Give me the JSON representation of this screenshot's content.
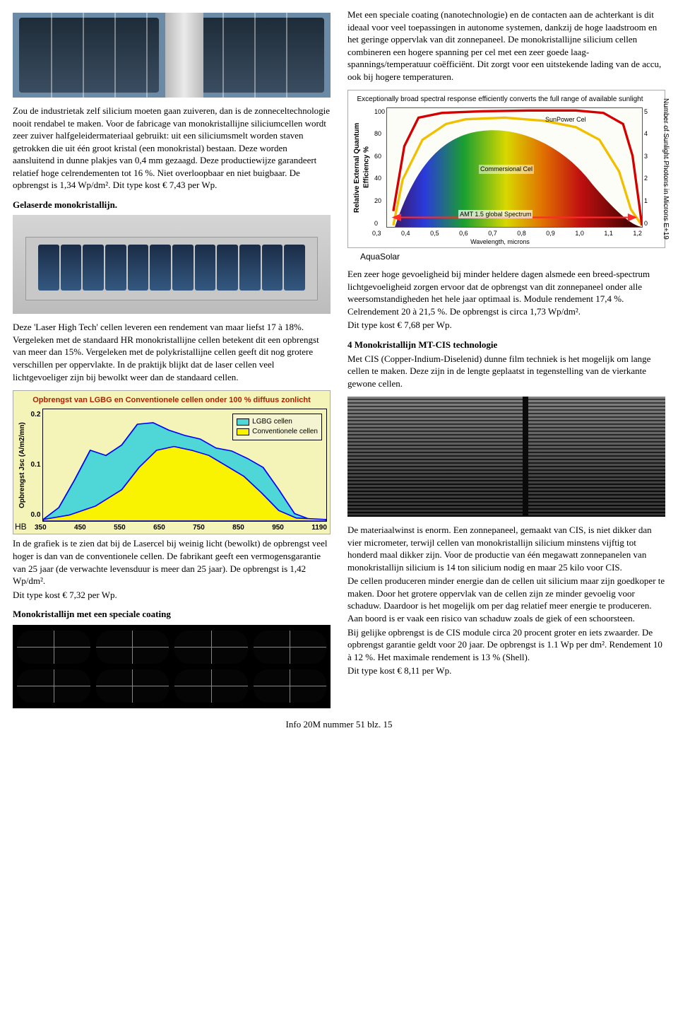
{
  "left": {
    "p1": "Zou de industrietak zelf silicium moeten gaan zuiveren, dan is de zonneceltechnologie nooit rendabel te maken. Voor de fabricage van monokristallijne siliciumcellen wordt zeer zuiver halfgeleidermateriaal gebruikt: uit een siliciumsmelt worden staven getrokken die uit één groot kristal (een monokristal) bestaan. Deze worden aansluitend in dunne plakjes van 0,4 mm gezaagd. Deze productiewijze garandeert relatief hoge celrendementen tot 16 %. Niet overloopbaar en niet buigbaar. De opbrengst is 1,34 Wp/dm². Dit type kost € 7,43 per Wp.",
    "h1": "Gelaserde monokristallijn.",
    "p2": "Deze 'Laser High Tech' cellen leveren een rendement van maar liefst 17 à 18%. Vergeleken met de standaard HR monokristallijne cellen betekent dit een opbrengst van meer dan 15%. Vergeleken met de polykristallijne cellen geeft dit nog grotere verschillen per oppervlakte. In de praktijk blijkt dat de laser cellen veel lichtgevoeliger zijn bij bewolkt weer dan de standaard cellen.",
    "hb": "HB",
    "p3": "In de grafiek is te zien dat bij de Lasercel bij weinig licht (bewolkt) de opbrengst veel hoger is dan van de conventionele cellen. De fabrikant geeft een vermogensgarantie van 25 jaar (de verwachte levensduur is meer dan 25 jaar). De opbrengst is 1,42 Wp/dm².",
    "p3b": "Dit type kost € 7,32 per Wp.",
    "h2": "Monokristallijn met een speciale coating"
  },
  "right": {
    "p1": "Met een speciale coating (nanotechnologie) en de contacten aan de achterkant is dit ideaal voor veel toepassingen in autonome systemen, dankzij de hoge laadstroom en het geringe oppervlak van dit zonnepaneel. De monokristallijne silicium cellen combineren een hogere spanning per cel met een zeer goede laag-spannings/temperatuur coëfficiënt. Dit zorgt voor een uitstekende lading van de accu, ook bij hogere temperaturen.",
    "aquasolar": "AquaSolar",
    "p2": "Een zeer hoge gevoeligheid bij minder heldere dagen alsmede een breed-spectrum lichtgevoeligheid zorgen ervoor dat de opbrengst van dit zonnepaneel onder alle weersomstandigheden het hele jaar optimaal is. Module rendement 17,4 %. Celrendement 20 à 21,5 %. De opbrengst is circa 1,73 Wp/dm².",
    "p2b": "Dit type kost € 7,68 per Wp.",
    "h3": "4 Monokristallijn MT-CIS technologie",
    "p3": "Met CIS (Copper-Indium-Diselenid) dunne film techniek is het mogelijk om lange cellen te maken. Deze zijn in de lengte geplaatst in tegenstelling van de vierkante gewone cellen.",
    "p4": "De materiaalwinst is enorm. Een zonnepaneel, gemaakt van CIS, is niet dikker dan vier micrometer, terwijl cellen van monokristallijn silicium minstens vijftig tot honderd maal dikker zijn. Voor de productie van één megawatt zonnepanelen van monokristallijn silicium is 14 ton silicium nodig en maar 25 kilo voor CIS.",
    "p5": "De cellen produceren minder energie dan de cellen uit silicium maar zijn goedkoper te maken. Door het grotere oppervlak van de cellen zijn ze minder gevoelig voor schaduw. Daardoor is het mogelijk om per dag relatief meer energie te produceren. Aan boord is er vaak een risico van schaduw zoals de giek of een schoorsteen.",
    "p6": "Bij gelijke opbrengst is de CIS module circa 20 procent groter en iets zwaarder. De opbrengst garantie geldt voor 20 jaar. De opbrengst is 1.1 Wp per dm². Rendement 10 à 12 %. Het maximale rendement is 13 % (Shell).",
    "p6b": "Dit type kost € 8,11 per Wp."
  },
  "lgbg_chart": {
    "title": "Opbrengst van LGBG en Conventionele cellen onder 100 % diffuus zonlicht",
    "bg": "#f4f4b8",
    "ylabel": "Opbrengst Jsc (A/m2/mn)",
    "yticks": [
      "0.0",
      "0.1",
      "0.2"
    ],
    "xticks": [
      "350",
      "450",
      "550",
      "650",
      "750",
      "850",
      "950",
      "1190"
    ],
    "legend": [
      {
        "label": "LGBG cellen",
        "color": "#4fd7d7"
      },
      {
        "label": "Conventionele cellen",
        "color": "#f9f200"
      }
    ],
    "lgbg_color": "#4fd7d7",
    "conv_color": "#f9f200",
    "line_color": "#0000ff",
    "lgbg_pts": [
      [
        0,
        148
      ],
      [
        18,
        132
      ],
      [
        36,
        95
      ],
      [
        54,
        55
      ],
      [
        72,
        62
      ],
      [
        90,
        48
      ],
      [
        108,
        20
      ],
      [
        126,
        18
      ],
      [
        144,
        28
      ],
      [
        162,
        35
      ],
      [
        180,
        40
      ],
      [
        198,
        52
      ],
      [
        216,
        56
      ],
      [
        234,
        66
      ],
      [
        252,
        78
      ],
      [
        270,
        108
      ],
      [
        288,
        140
      ],
      [
        306,
        148
      ],
      [
        324,
        148
      ]
    ],
    "conv_pts": [
      [
        0,
        148
      ],
      [
        30,
        142
      ],
      [
        60,
        130
      ],
      [
        90,
        108
      ],
      [
        110,
        78
      ],
      [
        130,
        55
      ],
      [
        150,
        50
      ],
      [
        170,
        55
      ],
      [
        190,
        62
      ],
      [
        210,
        76
      ],
      [
        230,
        90
      ],
      [
        250,
        112
      ],
      [
        270,
        136
      ],
      [
        290,
        146
      ],
      [
        324,
        148
      ]
    ]
  },
  "spectral_chart": {
    "title": "Exceptionally broad spectral response efficiently converts the full range of available sunlight",
    "ylabel": "Relative External Quantum Efficiency %",
    "y2label": "Number of Sunlight Photons in Microns E+19",
    "yticks": [
      "0",
      "20",
      "40",
      "60",
      "80",
      "100"
    ],
    "y2ticks": [
      "0",
      "1",
      "2",
      "3",
      "4",
      "5"
    ],
    "xticks": [
      "0,3",
      "0,4",
      "0,5",
      "0,6",
      "0,7",
      "0,8",
      "0,9",
      "1,0",
      "1,1",
      "1,2"
    ],
    "xlabel": "Wavelength, microns",
    "sunpower_label": "SunPower Cel",
    "commercial_label": "Commersional Cel",
    "amt_label": "AMT 1.5 global Spectrum",
    "sun_color": "#d40000",
    "com_color": "#f0c000",
    "bg": "#fdfdf8",
    "sun_pts": [
      [
        8,
        130
      ],
      [
        22,
        48
      ],
      [
        40,
        12
      ],
      [
        70,
        6
      ],
      [
        120,
        4
      ],
      [
        180,
        3
      ],
      [
        240,
        3
      ],
      [
        275,
        6
      ],
      [
        300,
        20
      ],
      [
        312,
        60
      ],
      [
        320,
        118
      ],
      [
        324,
        148
      ]
    ],
    "com_pts": [
      [
        8,
        148
      ],
      [
        20,
        90
      ],
      [
        45,
        40
      ],
      [
        75,
        20
      ],
      [
        100,
        14
      ],
      [
        150,
        12
      ],
      [
        200,
        16
      ],
      [
        240,
        24
      ],
      [
        270,
        40
      ],
      [
        295,
        80
      ],
      [
        310,
        128
      ],
      [
        324,
        148
      ]
    ]
  },
  "footer": "Info 20M nummer 51 blz. 15"
}
